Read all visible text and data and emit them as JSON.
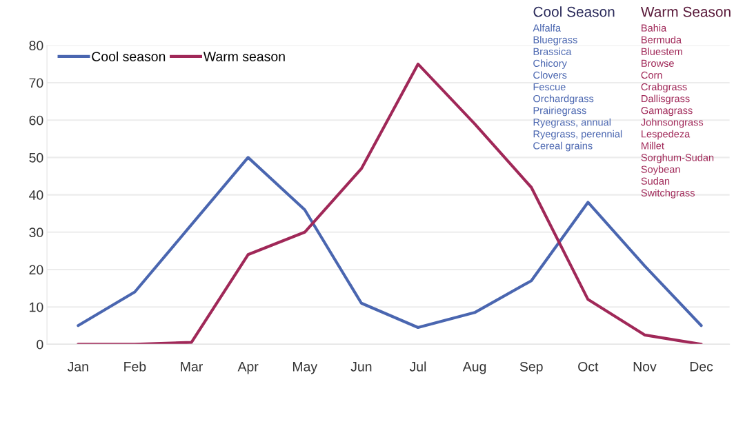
{
  "chart_data": {
    "type": "line",
    "categories": [
      "Jan",
      "Feb",
      "Mar",
      "Apr",
      "May",
      "Jun",
      "Jul",
      "Aug",
      "Sep",
      "Oct",
      "Nov",
      "Dec"
    ],
    "series": [
      {
        "name": "Cool season",
        "color": "#4a66b0",
        "values": [
          5,
          14,
          32,
          50,
          36,
          11,
          4.5,
          8.5,
          17,
          38,
          21,
          5
        ]
      },
      {
        "name": "Warm season",
        "color": "#a02858",
        "values": [
          0,
          0,
          0.5,
          24,
          30,
          47,
          75,
          59,
          42,
          12,
          2.5,
          0
        ]
      }
    ],
    "ylim": [
      0,
      80
    ],
    "yticks": [
      0,
      10,
      20,
      30,
      40,
      50,
      60,
      70,
      80
    ],
    "grid": "y",
    "legend": "top left",
    "annotations": [
      "Cool Season\nAlfalfa\nBluegrass\nBrassica\nChicory\nClovers\nFescue\nOrchardgrass\nPrairiegrass\nRyegrass, annual\nRyegrass, perennial\nCereal grains",
      "Warm Season\nBahia\nBermuda\nBluestem\nBrowse\nCorn\nCrabgrass\nDallisgrass\nGamagrass\nJohnsongrass\nLespedeza\nMillet\nSorghum-Sudan\nSoybean\nSudan\nSwitchgrass"
    ]
  }
}
